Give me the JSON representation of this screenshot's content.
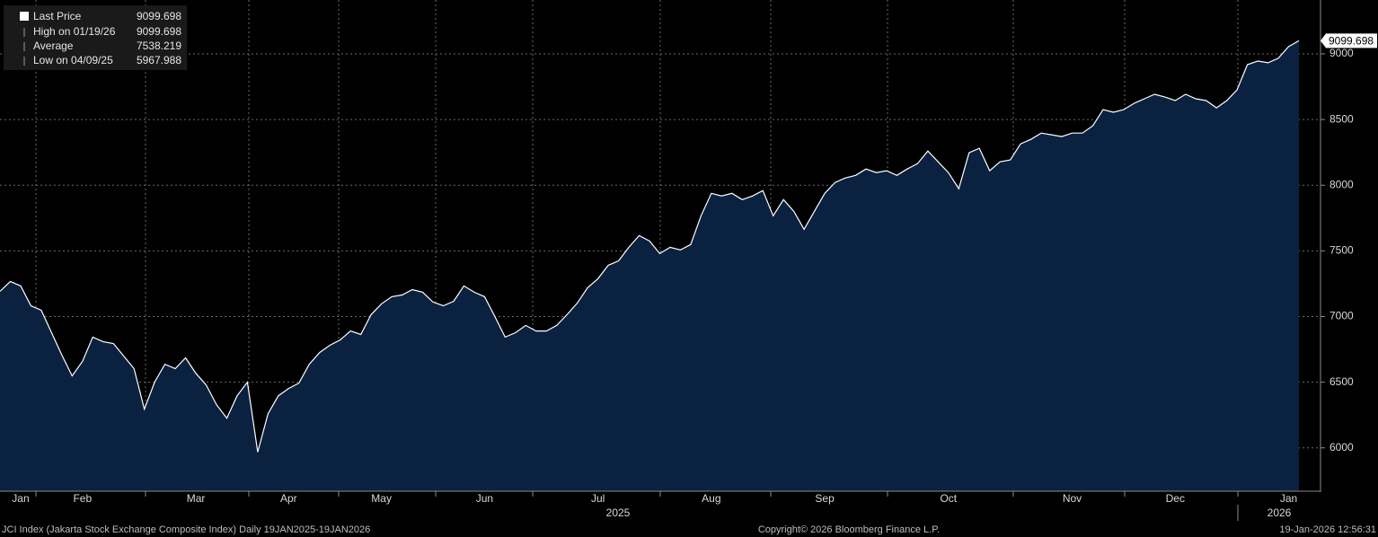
{
  "chart_data": {
    "type": "area",
    "categories": [
      null,
      null,
      "Jan",
      null,
      null,
      null,
      null,
      null,
      "Feb",
      null,
      null,
      null,
      null,
      null,
      null,
      null,
      null,
      null,
      null,
      "Mar",
      null,
      null,
      null,
      null,
      null,
      null,
      null,
      null,
      "Apr",
      null,
      null,
      null,
      null,
      null,
      null,
      null,
      null,
      "May",
      null,
      null,
      null,
      null,
      null,
      null,
      null,
      null,
      null,
      "Jun",
      null,
      null,
      null,
      null,
      null,
      null,
      null,
      null,
      null,
      null,
      "Jul",
      null,
      null,
      null,
      null,
      null,
      null,
      null,
      null,
      null,
      null,
      "Aug",
      null,
      null,
      null,
      null,
      null,
      null,
      null,
      null,
      null,
      null,
      "Sep",
      null,
      null,
      null,
      null,
      null,
      null,
      null,
      null,
      null,
      null,
      null,
      "Oct",
      null,
      null,
      null,
      null,
      null,
      null,
      null,
      null,
      null,
      null,
      null,
      "Nov",
      null,
      null,
      null,
      null,
      null,
      null,
      null,
      null,
      null,
      "Dec",
      null,
      null,
      null,
      null,
      null,
      null,
      null,
      null,
      null,
      null,
      "Jan",
      null
    ],
    "year_labels": [
      "2025",
      "2026"
    ],
    "series": [
      {
        "name": "Last Price",
        "color": "#ffffff",
        "fill": "#0b2140",
        "values": [
          7192,
          7267,
          7233,
          7082,
          7048,
          6877,
          6706,
          6548,
          6658,
          6843,
          6808,
          6795,
          6699,
          6603,
          6295,
          6500,
          6637,
          6603,
          6685,
          6568,
          6479,
          6329,
          6226,
          6397,
          6500,
          5967.988,
          6260,
          6397,
          6452,
          6493,
          6637,
          6726,
          6781,
          6822,
          6890,
          6863,
          7014,
          7096,
          7151,
          7164,
          7205,
          7185,
          7110,
          7082,
          7116,
          7233,
          7185,
          7151,
          7000,
          6843,
          6877,
          6932,
          6890,
          6890,
          6932,
          7014,
          7103,
          7219,
          7288,
          7390,
          7424,
          7527,
          7616,
          7575,
          7479,
          7527,
          7507,
          7548,
          7767,
          7938,
          7918,
          7938,
          7890,
          7918,
          7959,
          7767,
          7890,
          7801,
          7664,
          7801,
          7938,
          8021,
          8055,
          8075,
          8123,
          8096,
          8110,
          8075,
          8123,
          8164,
          8260,
          8178,
          8096,
          7973,
          8247,
          8281,
          8110,
          8178,
          8192,
          8315,
          8349,
          8397,
          8384,
          8370,
          8397,
          8397,
          8452,
          8575,
          8555,
          8575,
          8623,
          8658,
          8692,
          8671,
          8644,
          8692,
          8658,
          8644,
          8589,
          8644,
          8726,
          8918,
          8945,
          8932,
          8966,
          9055,
          9099.698
        ]
      }
    ],
    "legend_stats": [
      {
        "label": "High on 01/19/26",
        "value": 9099.698
      },
      {
        "label": "Average",
        "value": 7538.219
      },
      {
        "label": "Low on 04/09/25",
        "value": 5967.988
      }
    ],
    "ylim": [
      5670,
      9410
    ],
    "yticks": [
      6000,
      6500,
      7000,
      7500,
      8000,
      8500,
      9000
    ],
    "grid": true,
    "footer_left": "JCI Index (Jakarta Stock Exchange Composite Index) Daily 19JAN2025-19JAN2026",
    "footer_center": "Copyright© 2026 Bloomberg Finance L.P.",
    "footer_right": "19-Jan-2026 12:56:31"
  }
}
